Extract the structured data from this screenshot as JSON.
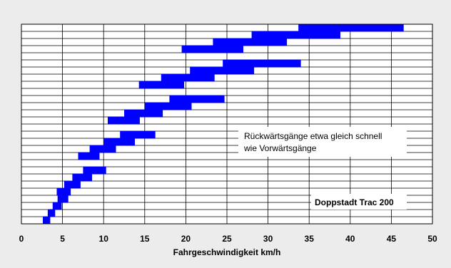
{
  "chart_data": {
    "type": "bar",
    "orientation": "horizontal-range",
    "title": "",
    "xlabel": "Fahrgeschwindigkeit km/h",
    "ylabel": "",
    "xlim": [
      0,
      50
    ],
    "xticks": [
      0,
      5,
      10,
      15,
      20,
      25,
      30,
      35,
      40,
      45,
      50
    ],
    "grid": true,
    "bar_color": "#0000ff",
    "rows": 28,
    "bars": [
      {
        "row": 1,
        "start": 33.7,
        "end": 46.5
      },
      {
        "row": 2,
        "start": 28.0,
        "end": 38.8
      },
      {
        "row": 3,
        "start": 23.3,
        "end": 32.3
      },
      {
        "row": 4,
        "start": 19.5,
        "end": 27.0
      },
      {
        "row": 6,
        "start": 24.5,
        "end": 34.0
      },
      {
        "row": 7,
        "start": 20.5,
        "end": 28.3
      },
      {
        "row": 8,
        "start": 17.0,
        "end": 23.5
      },
      {
        "row": 9,
        "start": 14.3,
        "end": 19.8
      },
      {
        "row": 11,
        "start": 18.0,
        "end": 24.7
      },
      {
        "row": 12,
        "start": 15.0,
        "end": 20.7
      },
      {
        "row": 13,
        "start": 12.5,
        "end": 17.2
      },
      {
        "row": 14,
        "start": 10.5,
        "end": 14.4
      },
      {
        "row": 16,
        "start": 12.0,
        "end": 16.3
      },
      {
        "row": 17,
        "start": 10.0,
        "end": 13.8
      },
      {
        "row": 18,
        "start": 8.3,
        "end": 11.5
      },
      {
        "row": 19,
        "start": 6.9,
        "end": 9.5
      },
      {
        "row": 21,
        "start": 7.5,
        "end": 10.3
      },
      {
        "row": 22,
        "start": 6.2,
        "end": 8.6
      },
      {
        "row": 23,
        "start": 5.2,
        "end": 7.2
      },
      {
        "row": 24,
        "start": 4.3,
        "end": 6.0
      },
      {
        "row": 25,
        "start": 4.4,
        "end": 5.7
      },
      {
        "row": 26,
        "start": 3.8,
        "end": 4.9
      },
      {
        "row": 27,
        "start": 3.2,
        "end": 4.1
      },
      {
        "row": 28,
        "start": 2.6,
        "end": 3.5
      }
    ],
    "annotations": [
      {
        "text_lines": [
          "Rückwärtsgänge etwa gleich schnell",
          "wie Vorwärtsgänge"
        ]
      },
      {
        "text": "Doppstadt Trac 200"
      }
    ]
  }
}
